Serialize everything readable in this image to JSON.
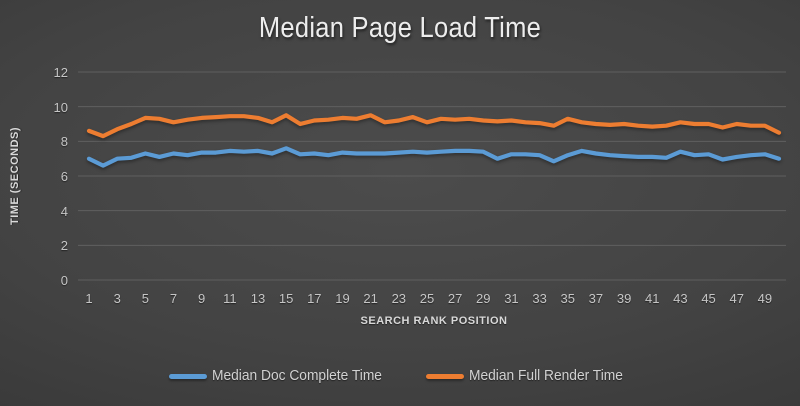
{
  "title": "Median Page Load Time",
  "colors": {
    "background_center": "#4c4c4c",
    "background_edge": "#2a2a2a",
    "gridline": "#5f5f5f",
    "tick_label": "#c6c6c6",
    "axis_title": "#d9d9d9",
    "title_text": "#ededed",
    "legend_text": "#d2d2d2",
    "series_doc_complete": "#5B9BD5",
    "series_full_render": "#ED7D31"
  },
  "chart_data": {
    "type": "line",
    "title": "Median Page Load Time",
    "xlabel": "SEARCH RANK POSITION",
    "ylabel": "TIME (SECONDS)",
    "x": [
      1,
      2,
      3,
      4,
      5,
      6,
      7,
      8,
      9,
      10,
      11,
      12,
      13,
      14,
      15,
      16,
      17,
      18,
      19,
      20,
      21,
      22,
      23,
      24,
      25,
      26,
      27,
      28,
      29,
      30,
      31,
      32,
      33,
      34,
      35,
      36,
      37,
      38,
      39,
      40,
      41,
      42,
      43,
      44,
      45,
      46,
      47,
      48,
      49,
      50
    ],
    "x_tick_labels": [
      "1",
      "3",
      "5",
      "7",
      "9",
      "11",
      "13",
      "15",
      "17",
      "19",
      "21",
      "23",
      "25",
      "27",
      "29",
      "31",
      "33",
      "35",
      "37",
      "39",
      "41",
      "43",
      "45",
      "47",
      "49"
    ],
    "ylim": [
      0,
      12
    ],
    "y_ticks": [
      0,
      2,
      4,
      6,
      8,
      10,
      12
    ],
    "grid": "horizontal",
    "legend_position": "bottom",
    "series": [
      {
        "name": "Median Doc Complete Time",
        "color": "#5B9BD5",
        "values": [
          7.0,
          6.6,
          7.0,
          7.05,
          7.3,
          7.1,
          7.3,
          7.2,
          7.35,
          7.35,
          7.45,
          7.4,
          7.45,
          7.3,
          7.6,
          7.25,
          7.3,
          7.2,
          7.35,
          7.3,
          7.3,
          7.3,
          7.35,
          7.4,
          7.35,
          7.4,
          7.45,
          7.45,
          7.4,
          7.0,
          7.25,
          7.25,
          7.2,
          6.85,
          7.2,
          7.45,
          7.3,
          7.2,
          7.15,
          7.1,
          7.1,
          7.05,
          7.4,
          7.2,
          7.25,
          6.95,
          7.1,
          7.2,
          7.25,
          7.0
        ]
      },
      {
        "name": "Median Full Render Time",
        "color": "#ED7D31",
        "values": [
          8.6,
          8.3,
          8.7,
          9.0,
          9.35,
          9.3,
          9.1,
          9.25,
          9.35,
          9.4,
          9.45,
          9.45,
          9.35,
          9.1,
          9.5,
          9.0,
          9.2,
          9.25,
          9.35,
          9.3,
          9.5,
          9.1,
          9.2,
          9.4,
          9.1,
          9.3,
          9.25,
          9.3,
          9.2,
          9.15,
          9.2,
          9.1,
          9.05,
          8.9,
          9.3,
          9.1,
          9.0,
          8.95,
          9.0,
          8.9,
          8.85,
          8.9,
          9.1,
          9.0,
          9.0,
          8.8,
          9.0,
          8.9,
          8.9,
          8.5
        ]
      }
    ]
  }
}
